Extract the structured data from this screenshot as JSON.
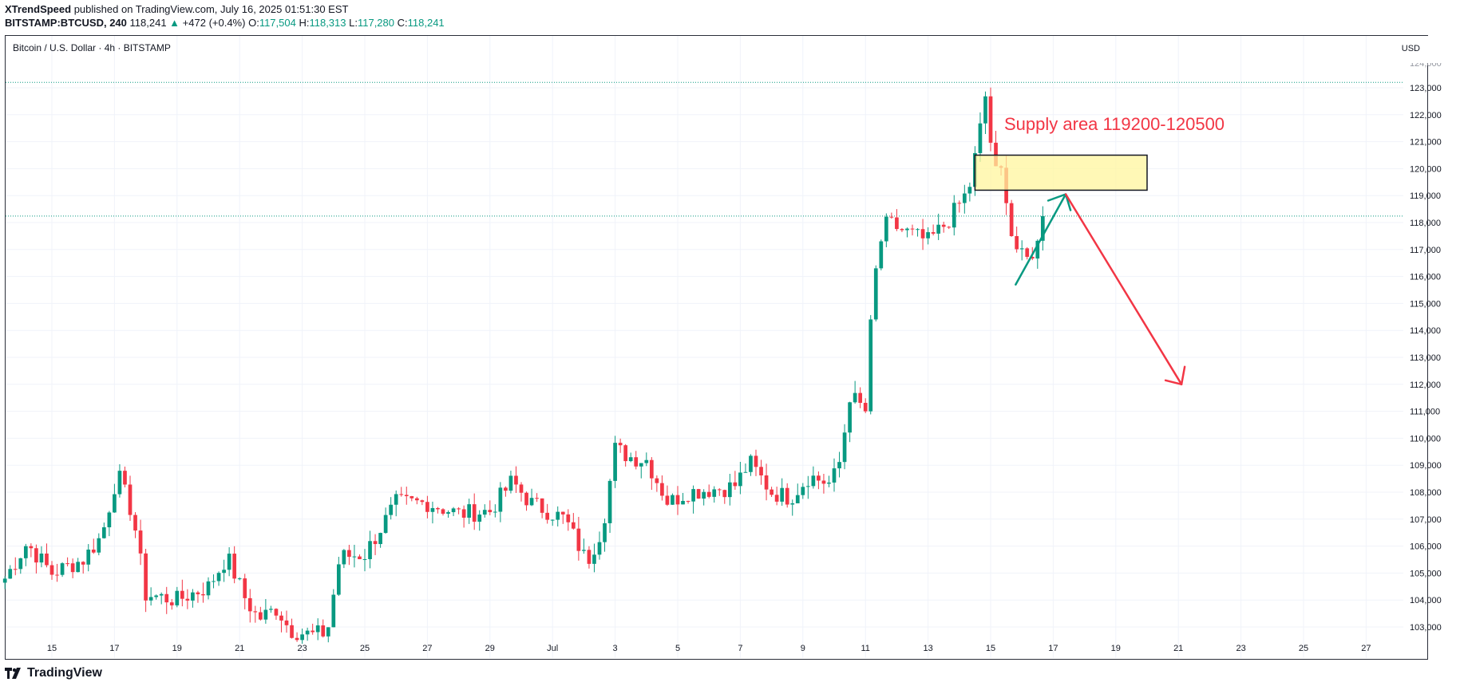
{
  "header": {
    "publisher": "XTrendSpeed",
    "published_text": "published on TradingView.com, July 16, 2025 01:51:30 EST",
    "symbol": "BITSTAMP:BTCUSD, 240",
    "last": "118,241",
    "arrow": "▲",
    "change": "+472 (+0.4%)",
    "o_label": "O:",
    "o_value": "117,504",
    "h_label": "H:",
    "h_value": "118,313",
    "l_label": "L:",
    "l_value": "117,280",
    "c_label": "C:",
    "c_value": "118,241"
  },
  "chart_title": "Bitcoin / U.S. Dollar · 4h · BITSTAMP",
  "currency": "USD",
  "footer": {
    "brand": "TradingView"
  },
  "colors": {
    "up": "#089981",
    "down": "#f23645",
    "supply_fill": "#fff59d",
    "grid": "#f0f3fa"
  },
  "chart_data": {
    "type": "candlestick",
    "title": "Bitcoin / U.S. Dollar · 4h · BITSTAMP",
    "ylim": [
      102600,
      124400
    ],
    "y_ticks": [
      103000,
      104000,
      105000,
      106000,
      107000,
      108000,
      109000,
      110000,
      111000,
      112000,
      113000,
      114000,
      115000,
      116000,
      117000,
      118000,
      119000,
      120000,
      121000,
      122000,
      123000
    ],
    "y_tick_labels": [
      "103,000",
      "104,000",
      "105,000",
      "106,000",
      "107,000",
      "108,000",
      "109,000",
      "110,000",
      "111,000",
      "112,000",
      "113,000",
      "114,000",
      "115,000",
      "116,000",
      "117,000",
      "118,000",
      "119,000",
      "120,000",
      "121,000",
      "122,000",
      "123,000"
    ],
    "x_ticks": [
      {
        "day": 0,
        "label": "15"
      },
      {
        "day": 2,
        "label": "17"
      },
      {
        "day": 4,
        "label": "19"
      },
      {
        "day": 6,
        "label": "21"
      },
      {
        "day": 8,
        "label": "23"
      },
      {
        "day": 10,
        "label": "25"
      },
      {
        "day": 12,
        "label": "27"
      },
      {
        "day": 14,
        "label": "29"
      },
      {
        "day": 16,
        "label": "Jul"
      },
      {
        "day": 18,
        "label": "3"
      },
      {
        "day": 20,
        "label": "5"
      },
      {
        "day": 22,
        "label": "7"
      },
      {
        "day": 24,
        "label": "9"
      },
      {
        "day": 26,
        "label": "11"
      },
      {
        "day": 28,
        "label": "13"
      },
      {
        "day": 30,
        "label": "15"
      },
      {
        "day": 32,
        "label": "17"
      },
      {
        "day": 34,
        "label": "19"
      },
      {
        "day": 36,
        "label": "21"
      },
      {
        "day": 38,
        "label": "23"
      },
      {
        "day": 40,
        "label": "25"
      },
      {
        "day": 42,
        "label": "27"
      }
    ],
    "key_points": [
      {
        "day": -1.5,
        "price": 104800
      },
      {
        "day": -0.8,
        "price": 106100
      },
      {
        "day": 0,
        "price": 105000
      },
      {
        "day": 1,
        "price": 105500
      },
      {
        "day": 1.6,
        "price": 106400
      },
      {
        "day": 2.1,
        "price": 108700
      },
      {
        "day": 2.6,
        "price": 107100
      },
      {
        "day": 3,
        "price": 104200
      },
      {
        "day": 4,
        "price": 104000
      },
      {
        "day": 5,
        "price": 104500
      },
      {
        "day": 5.6,
        "price": 105600
      },
      {
        "day": 6.2,
        "price": 104000
      },
      {
        "day": 6.6,
        "price": 103300
      },
      {
        "day": 7.2,
        "price": 103700
      },
      {
        "day": 7.6,
        "price": 102900
      },
      {
        "day": 8.3,
        "price": 102700
      },
      {
        "day": 8.8,
        "price": 102800
      },
      {
        "day": 9.2,
        "price": 105600
      },
      {
        "day": 10,
        "price": 105700
      },
      {
        "day": 11,
        "price": 107600
      },
      {
        "day": 12,
        "price": 107600
      },
      {
        "day": 13,
        "price": 107200
      },
      {
        "day": 14,
        "price": 107300
      },
      {
        "day": 14.7,
        "price": 108400
      },
      {
        "day": 15.3,
        "price": 107600
      },
      {
        "day": 16.4,
        "price": 107000
      },
      {
        "day": 17.1,
        "price": 105400
      },
      {
        "day": 17.6,
        "price": 106700
      },
      {
        "day": 18,
        "price": 109600
      },
      {
        "day": 18.5,
        "price": 109300
      },
      {
        "day": 19,
        "price": 109200
      },
      {
        "day": 19.7,
        "price": 107600
      },
      {
        "day": 20.3,
        "price": 108000
      },
      {
        "day": 21,
        "price": 108100
      },
      {
        "day": 21.8,
        "price": 108200
      },
      {
        "day": 22.3,
        "price": 109100
      },
      {
        "day": 23,
        "price": 108000
      },
      {
        "day": 23.6,
        "price": 107800
      },
      {
        "day": 24.2,
        "price": 108600
      },
      {
        "day": 24.9,
        "price": 108300
      },
      {
        "day": 25.2,
        "price": 109200
      },
      {
        "day": 25.5,
        "price": 111600
      },
      {
        "day": 26,
        "price": 111000
      },
      {
        "day": 26.1,
        "price": 113300
      },
      {
        "day": 26.4,
        "price": 117000
      },
      {
        "day": 26.7,
        "price": 118000
      },
      {
        "day": 27.2,
        "price": 117700
      },
      {
        "day": 28,
        "price": 117300
      },
      {
        "day": 28.6,
        "price": 118000
      },
      {
        "day": 29.3,
        "price": 119200
      },
      {
        "day": 29.6,
        "price": 121000
      },
      {
        "day": 29.85,
        "price": 122800
      },
      {
        "day": 30.1,
        "price": 119800
      },
      {
        "day": 30.4,
        "price": 119900
      },
      {
        "day": 30.7,
        "price": 117300
      },
      {
        "day": 31.1,
        "price": 116500
      },
      {
        "day": 31.5,
        "price": 117200
      },
      {
        "day": 31.8,
        "price": 118241
      }
    ],
    "annotations": {
      "supply_text": "Supply area 119200-120500",
      "supply_zone": {
        "from_day": 29.5,
        "to_day": 35.0,
        "low": 119200,
        "high": 120500
      },
      "green_path": [
        {
          "day": 30.8,
          "price": 115700
        },
        {
          "day": 32.4,
          "price": 119050
        }
      ],
      "red_path": [
        {
          "day": 32.4,
          "price": 119050
        },
        {
          "day": 36.1,
          "price": 112000
        }
      ],
      "high_line": 123200,
      "last_price_line": 118241
    }
  }
}
